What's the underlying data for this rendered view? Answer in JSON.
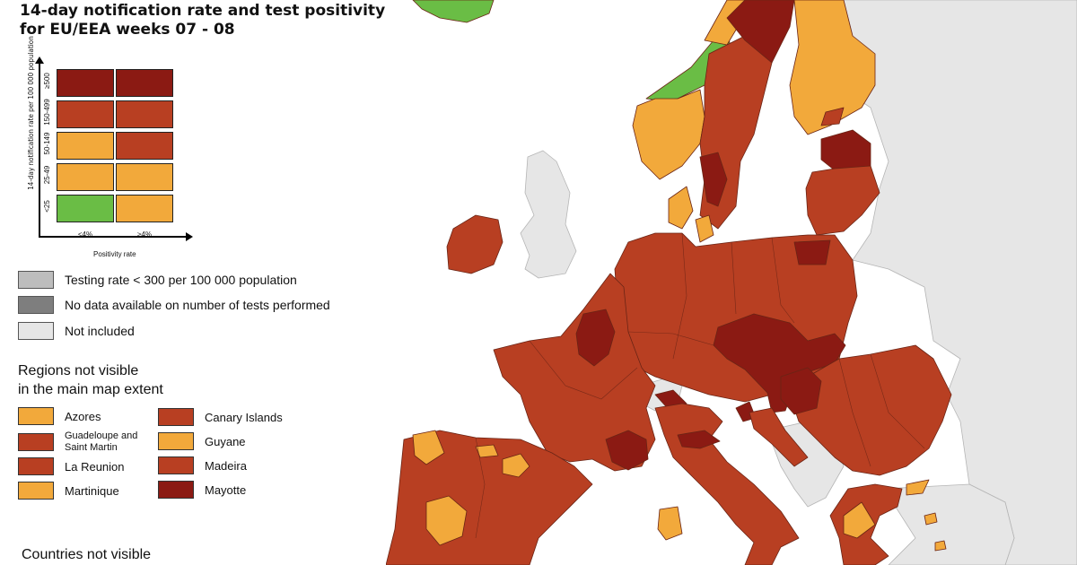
{
  "title": {
    "line1": "14-day notification rate and test positivity",
    "line2": "for EU/EEA weeks 07 - 08"
  },
  "matrix": {
    "y_axis_label": "14-day notification rate per 100 000 population",
    "x_axis_label": "Positivity rate",
    "columns": [
      "<4%",
      "≥4%"
    ],
    "rows": [
      {
        "label": "≥500",
        "colors": [
          "#8b1a13",
          "#8b1a13"
        ]
      },
      {
        "label": "150-499",
        "colors": [
          "#b83f22",
          "#b83f22"
        ]
      },
      {
        "label": "50-149",
        "colors": [
          "#f2a93b",
          "#b83f22"
        ]
      },
      {
        "label": "25-49",
        "colors": [
          "#f2a93b",
          "#f2a93b"
        ]
      },
      {
        "label": "<25",
        "colors": [
          "#6abd45",
          "#f2a93b"
        ]
      }
    ]
  },
  "data_legend": [
    {
      "label": "Testing rate < 300 per 100 000 population",
      "color": "#bdbdbd"
    },
    {
      "label": "No data available on number of tests performed",
      "color": "#7e7e7e"
    },
    {
      "label": "Not included",
      "color": "#e6e6e6"
    }
  ],
  "regions_heading": {
    "line1": "Regions not visible",
    "line2": "in the main map extent"
  },
  "regions": [
    {
      "label": "Azores",
      "color": "#f2a93b"
    },
    {
      "label": "Canary Islands",
      "color": "#b83f22"
    },
    {
      "label": "Guadeloupe and Saint Martin",
      "color": "#b83f22"
    },
    {
      "label": "Guyane",
      "color": "#f2a93b"
    },
    {
      "label": "La Reunion",
      "color": "#b83f22"
    },
    {
      "label": "Madeira",
      "color": "#b83f22"
    },
    {
      "label": "Martinique",
      "color": "#f2a93b"
    },
    {
      "label": "Mayotte",
      "color": "#8b1a13"
    }
  ],
  "countries_heading": "Countries not visible",
  "colors": {
    "dark_red": "#8b1a13",
    "red": "#b83f22",
    "orange": "#f2a93b",
    "green": "#6abd45",
    "not_included": "#e6e6e6",
    "sea": "#ffffff",
    "border": "#6a2415"
  }
}
